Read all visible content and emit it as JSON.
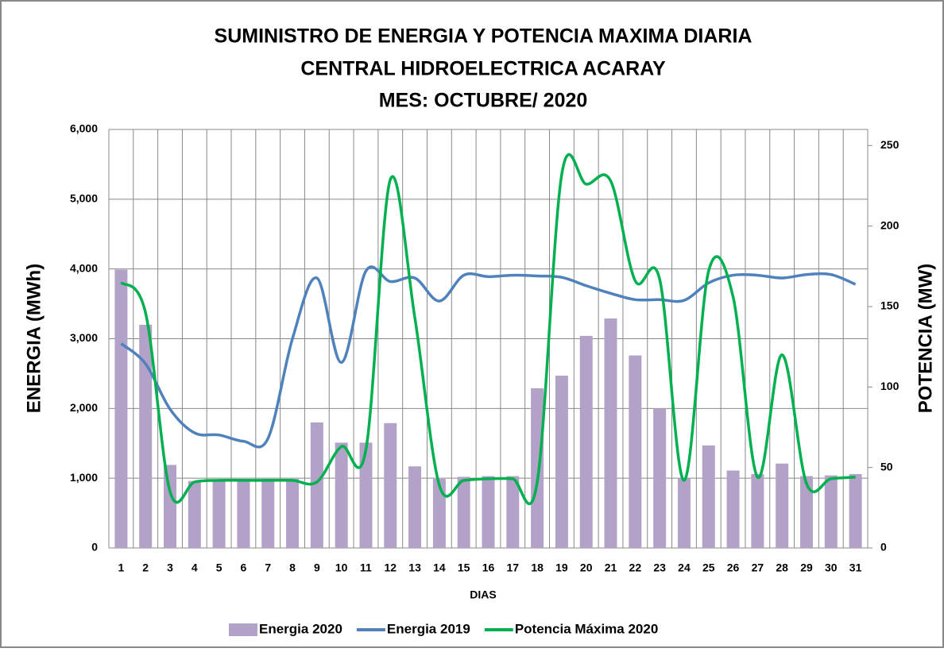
{
  "chart_data": {
    "type": "bar",
    "title": [
      "SUMINISTRO DE ENERGIA  Y POTENCIA MAXIMA DIARIA",
      "CENTRAL HIDROELECTRICA ACARAY",
      "MES: OCTUBRE/ 2020"
    ],
    "x_label": "DIAS",
    "y_label": "ENERGIA (MWh)",
    "y2_label": "POTENCIA (MW)",
    "categories": [
      "1",
      "2",
      "3",
      "4",
      "5",
      "6",
      "7",
      "8",
      "9",
      "10",
      "11",
      "12",
      "13",
      "14",
      "15",
      "16",
      "17",
      "18",
      "19",
      "20",
      "21",
      "22",
      "23",
      "24",
      "25",
      "26",
      "27",
      "28",
      "29",
      "30",
      "31"
    ],
    "series": [
      {
        "name": "Energia 2020",
        "type": "bar",
        "color": "#b3a2c7",
        "values": [
          3990,
          3200,
          1190,
          960,
          980,
          990,
          990,
          990,
          1800,
          1510,
          1510,
          1790,
          1170,
          990,
          1020,
          1030,
          1030,
          2290,
          2470,
          3040,
          3290,
          2760,
          2000,
          1000,
          1470,
          1110,
          1060,
          1210,
          1030,
          1040,
          1060
        ]
      },
      {
        "name": "Energia 2019",
        "type": "line",
        "color": "#4f81bd",
        "values": [
          2930,
          2640,
          1990,
          1650,
          1620,
          1530,
          1570,
          3000,
          3870,
          2660,
          3970,
          3820,
          3870,
          3540,
          3910,
          3890,
          3910,
          3900,
          3880,
          3760,
          3650,
          3560,
          3560,
          3550,
          3800,
          3910,
          3910,
          3870,
          3920,
          3920,
          3780
        ]
      },
      {
        "name": "Potencia Máxima 2020",
        "type": "line",
        "axis": "y2",
        "color": "#00b050",
        "values": [
          165,
          146,
          35,
          41,
          42,
          42,
          42,
          42,
          41,
          63,
          61,
          229,
          143,
          39,
          42,
          43,
          43,
          41,
          232,
          226,
          228,
          166,
          167,
          42,
          172,
          156,
          44,
          120,
          40,
          43,
          44
        ]
      }
    ],
    "ylim": [
      0,
      6000
    ],
    "yticks": [
      0,
      {
        "value": 1000,
        "label": "1,000"
      },
      {
        "value": 2000,
        "label": "2,000"
      },
      {
        "value": 3000,
        "label": "3,000"
      },
      {
        "value": 4000,
        "label": "4,000"
      },
      {
        "value": 5000,
        "label": "5,000"
      },
      {
        "value": 6000,
        "label": "6,000"
      }
    ],
    "y2lim": [
      0,
      260
    ],
    "y2ticks": [
      0,
      50,
      100,
      150,
      200,
      250
    ],
    "grid": true,
    "legend": "bottom"
  }
}
